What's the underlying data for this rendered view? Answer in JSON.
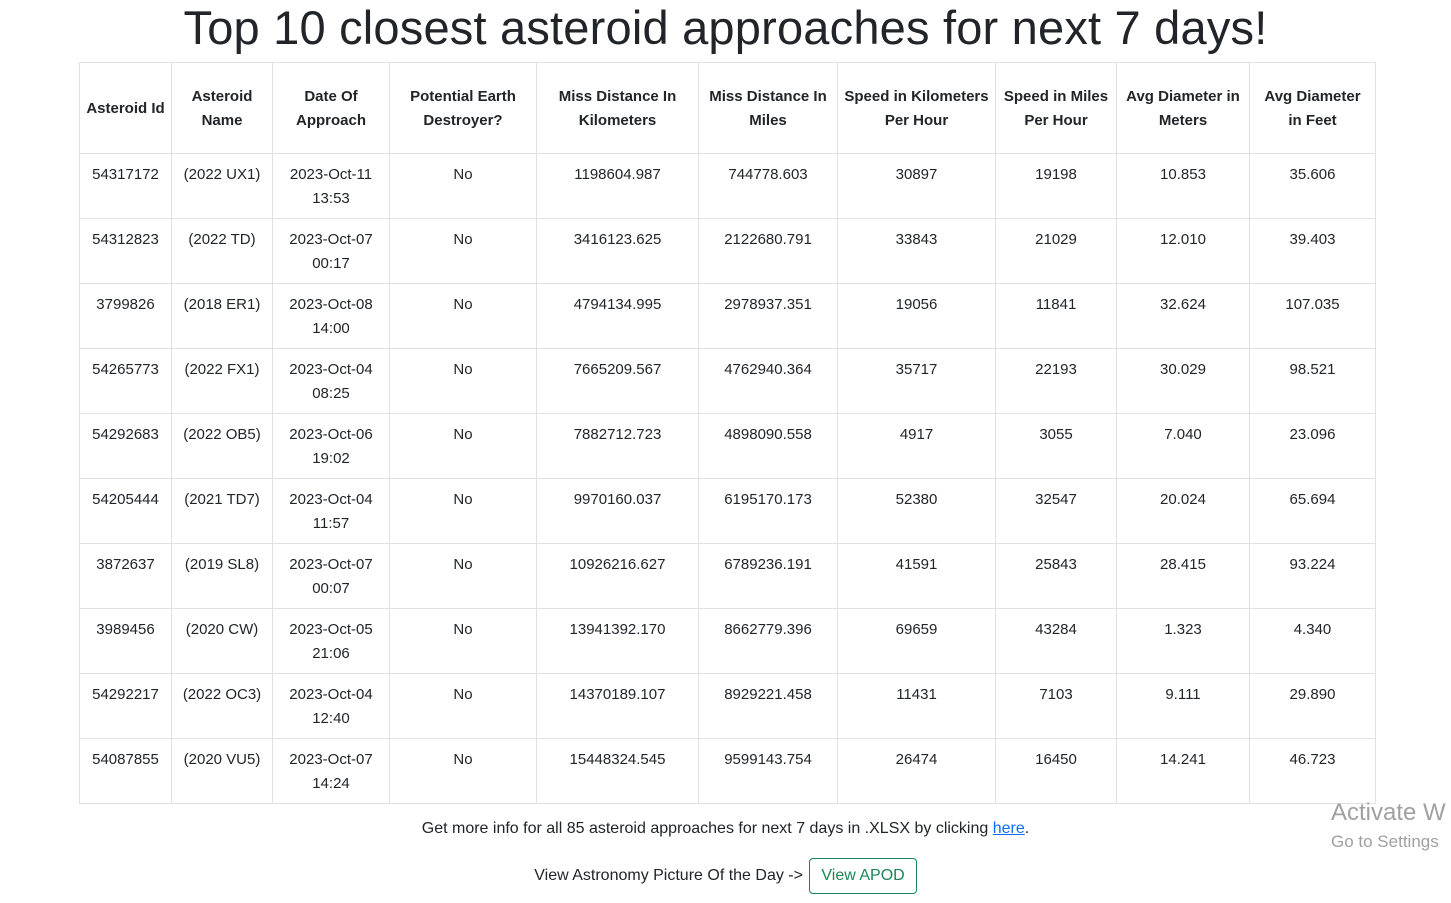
{
  "page": {
    "title": "Top 10 closest asteroid approaches for next 7 days!"
  },
  "table": {
    "headers": [
      "Asteroid Id",
      "Asteroid Name",
      "Date Of Approach",
      "Potential Earth Destroyer?",
      "Miss Distance In Kilometers",
      "Miss Distance In Miles",
      "Speed in Kilometers Per Hour",
      "Speed in Miles Per Hour",
      "Avg Diameter in Meters",
      "Avg Diameter in Feet"
    ],
    "rows": [
      [
        "54317172",
        "(2022 UX1)",
        "2023-Oct-11 13:53",
        "No",
        "1198604.987",
        "744778.603",
        "30897",
        "19198",
        "10.853",
        "35.606"
      ],
      [
        "54312823",
        "(2022 TD)",
        "2023-Oct-07 00:17",
        "No",
        "3416123.625",
        "2122680.791",
        "33843",
        "21029",
        "12.010",
        "39.403"
      ],
      [
        "3799826",
        "(2018 ER1)",
        "2023-Oct-08 14:00",
        "No",
        "4794134.995",
        "2978937.351",
        "19056",
        "11841",
        "32.624",
        "107.035"
      ],
      [
        "54265773",
        "(2022 FX1)",
        "2023-Oct-04 08:25",
        "No",
        "7665209.567",
        "4762940.364",
        "35717",
        "22193",
        "30.029",
        "98.521"
      ],
      [
        "54292683",
        "(2022 OB5)",
        "2023-Oct-06 19:02",
        "No",
        "7882712.723",
        "4898090.558",
        "4917",
        "3055",
        "7.040",
        "23.096"
      ],
      [
        "54205444",
        "(2021 TD7)",
        "2023-Oct-04 11:57",
        "No",
        "9970160.037",
        "6195170.173",
        "52380",
        "32547",
        "20.024",
        "65.694"
      ],
      [
        "3872637",
        "(2019 SL8)",
        "2023-Oct-07 00:07",
        "No",
        "10926216.627",
        "6789236.191",
        "41591",
        "25843",
        "28.415",
        "93.224"
      ],
      [
        "3989456",
        "(2020 CW)",
        "2023-Oct-05 21:06",
        "No",
        "13941392.170",
        "8662779.396",
        "69659",
        "43284",
        "1.323",
        "4.340"
      ],
      [
        "54292217",
        "(2022 OC3)",
        "2023-Oct-04 12:40",
        "No",
        "14370189.107",
        "8929221.458",
        "11431",
        "7103",
        "9.111",
        "29.890"
      ],
      [
        "54087855",
        "(2020 VU5)",
        "2023-Oct-07 14:24",
        "No",
        "15448324.545",
        "9599143.754",
        "26474",
        "16450",
        "14.241",
        "46.723"
      ]
    ]
  },
  "footer": {
    "more_info_text": "Get more info for all 85 asteroid approaches for next 7 days in .XLSX by clicking ",
    "link_text": "here",
    "period": ".",
    "apod_label": "View Astronomy Picture Of the Day ->",
    "apod_button": "View APOD"
  },
  "watermark": {
    "title": "Activate W",
    "subtitle": "Go to Settings"
  },
  "colors": {
    "link": "#0d6efd",
    "button_outline": "#198754",
    "border": "#dee2e6",
    "watermark": "#a0a0a0"
  }
}
